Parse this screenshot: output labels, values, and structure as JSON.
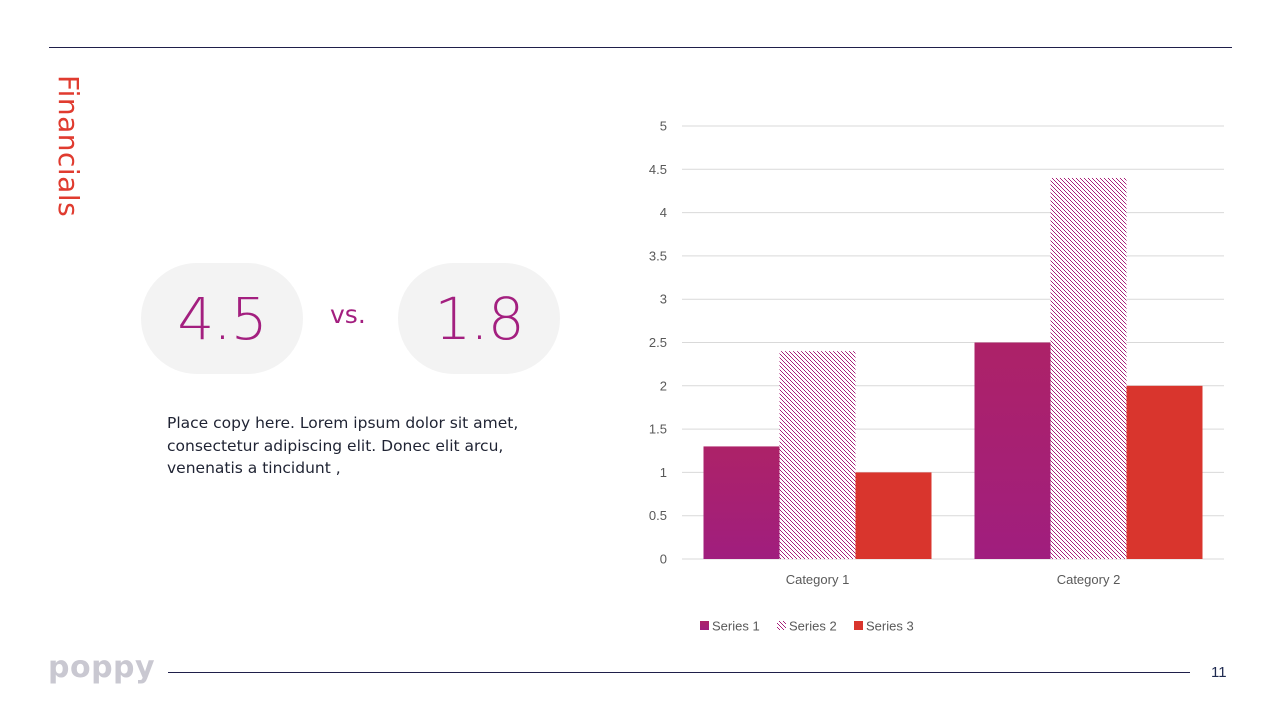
{
  "slide": {
    "title": "Financials",
    "stat_a": "4.5",
    "vs_label": "vs.",
    "stat_b": "1.8",
    "copy": "Place copy here. Lorem ipsum dolor sit amet, consectetur adipiscing elit. Donec elit arcu, venenatis a tincidunt ,",
    "logo": "poppy",
    "page_number": "11"
  },
  "colors": {
    "accent_red": "#e03b2f",
    "accent_magenta": "#a31f7f",
    "series_1": "#a8207a",
    "series_2": "#a8207a",
    "series_3": "#d9352d",
    "rule": "#1f1f4a"
  },
  "chart_data": {
    "type": "bar",
    "title": "",
    "xlabel": "",
    "ylabel": "",
    "categories": [
      "Category 1",
      "Category 2"
    ],
    "series": [
      {
        "name": "Series 1",
        "values": [
          1.3,
          2.5
        ],
        "fill": "solid"
      },
      {
        "name": "Series 2",
        "values": [
          2.4,
          4.4
        ],
        "fill": "pattern"
      },
      {
        "name": "Series 3",
        "values": [
          1.0,
          2.0
        ],
        "fill": "solid"
      }
    ],
    "ylim": [
      0,
      5
    ],
    "yticks": [
      "0",
      "0.5",
      "1",
      "1.5",
      "2",
      "2.5",
      "3",
      "3.5",
      "4",
      "4.5",
      "5"
    ],
    "grid": true,
    "legend": "bottom"
  }
}
